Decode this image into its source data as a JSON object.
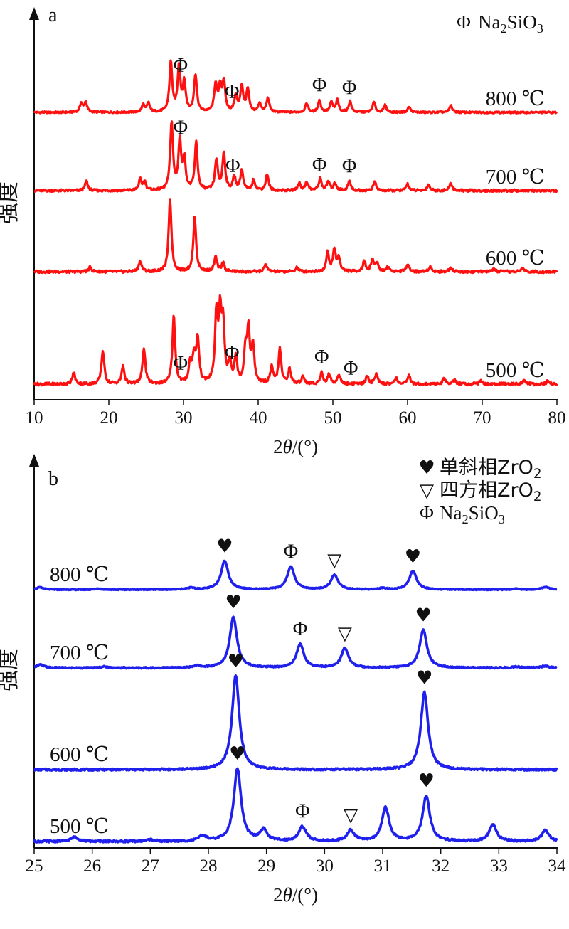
{
  "chart_data": [
    {
      "panel": "a",
      "type": "line",
      "xlabel": "2θ/(°)",
      "ylabel": "强度",
      "xlim": [
        10,
        80
      ],
      "xticks": [
        10,
        20,
        30,
        40,
        50,
        60,
        70,
        80
      ],
      "legend": [
        {
          "symbol": "Φ",
          "label": "Na2SiO3"
        }
      ],
      "series": [
        {
          "name": "800 ℃",
          "color": "#ff1010",
          "baseline": 0,
          "peaks": [
            [
              16.3,
              0.18
            ],
            [
              16.9,
              0.2
            ],
            [
              24.6,
              0.15
            ],
            [
              25.3,
              0.18
            ],
            [
              28.3,
              1.0
            ],
            [
              29.4,
              0.92
            ],
            [
              30.1,
              0.58
            ],
            [
              31.6,
              0.75
            ],
            [
              34.3,
              0.55
            ],
            [
              34.9,
              0.48
            ],
            [
              35.4,
              0.58
            ],
            [
              37.0,
              0.32
            ],
            [
              37.8,
              0.52
            ],
            [
              38.6,
              0.45
            ],
            [
              40.2,
              0.18
            ],
            [
              41.3,
              0.28
            ],
            [
              46.5,
              0.18
            ],
            [
              48.2,
              0.24
            ],
            [
              49.8,
              0.2
            ],
            [
              50.6,
              0.24
            ],
            [
              52.3,
              0.22
            ],
            [
              55.5,
              0.2
            ],
            [
              57.0,
              0.14
            ],
            [
              60.2,
              0.11
            ],
            [
              65.8,
              0.14
            ]
          ],
          "markers": [
            {
              "x": 29.6,
              "symbol": "Φ"
            },
            {
              "x": 36.5,
              "symbol": "Φ"
            },
            {
              "x": 48.2,
              "symbol": "Φ"
            },
            {
              "x": 52.2,
              "symbol": "Φ"
            }
          ]
        },
        {
          "name": "700 ℃",
          "color": "#ff1010",
          "baseline": 1,
          "peaks": [
            [
              17.0,
              0.14
            ],
            [
              24.2,
              0.16
            ],
            [
              24.8,
              0.12
            ],
            [
              28.4,
              1.0
            ],
            [
              29.5,
              0.72
            ],
            [
              30.1,
              0.45
            ],
            [
              31.7,
              0.7
            ],
            [
              34.4,
              0.45
            ],
            [
              35.4,
              0.55
            ],
            [
              36.8,
              0.2
            ],
            [
              37.8,
              0.3
            ],
            [
              39.4,
              0.16
            ],
            [
              41.2,
              0.24
            ],
            [
              45.5,
              0.11
            ],
            [
              46.5,
              0.13
            ],
            [
              48.3,
              0.18
            ],
            [
              49.4,
              0.13
            ],
            [
              50.3,
              0.11
            ],
            [
              52.2,
              0.14
            ],
            [
              55.6,
              0.13
            ],
            [
              60.0,
              0.1
            ],
            [
              62.8,
              0.09
            ],
            [
              65.8,
              0.11
            ]
          ],
          "markers": [
            {
              "x": 29.6,
              "symbol": "Φ"
            },
            {
              "x": 36.6,
              "symbol": "Φ"
            },
            {
              "x": 48.2,
              "symbol": "Φ"
            },
            {
              "x": 52.2,
              "symbol": "Φ"
            }
          ]
        },
        {
          "name": "600 ℃",
          "color": "#ff1010",
          "baseline": 2,
          "peaks": [
            [
              17.5,
              0.06
            ],
            [
              24.2,
              0.15
            ],
            [
              28.2,
              1.0
            ],
            [
              31.5,
              0.75
            ],
            [
              34.3,
              0.2
            ],
            [
              35.3,
              0.12
            ],
            [
              41.0,
              0.1
            ],
            [
              45.2,
              0.06
            ],
            [
              49.3,
              0.26
            ],
            [
              50.2,
              0.3
            ],
            [
              50.8,
              0.18
            ],
            [
              54.2,
              0.14
            ],
            [
              55.3,
              0.16
            ],
            [
              55.9,
              0.12
            ],
            [
              57.4,
              0.07
            ],
            [
              60.0,
              0.11
            ],
            [
              63.0,
              0.07
            ],
            [
              65.8,
              0.06
            ],
            [
              71.5,
              0.04
            ],
            [
              75.4,
              0.05
            ]
          ],
          "markers": []
        },
        {
          "name": "500 ℃",
          "color": "#ff1010",
          "baseline": 3,
          "peaks": [
            [
              15.3,
              0.14
            ],
            [
              19.2,
              0.42
            ],
            [
              21.9,
              0.22
            ],
            [
              24.7,
              0.45
            ],
            [
              28.7,
              0.85
            ],
            [
              30.9,
              0.25
            ],
            [
              31.4,
              0.32
            ],
            [
              31.9,
              0.55
            ],
            [
              34.4,
              0.82
            ],
            [
              34.9,
              0.8
            ],
            [
              35.3,
              0.7
            ],
            [
              36.2,
              0.25
            ],
            [
              37.0,
              0.32
            ],
            [
              38.3,
              0.4
            ],
            [
              38.7,
              0.62
            ],
            [
              39.3,
              0.45
            ],
            [
              41.8,
              0.2
            ],
            [
              42.9,
              0.43
            ],
            [
              44.2,
              0.18
            ],
            [
              46.0,
              0.1
            ],
            [
              48.5,
              0.14
            ],
            [
              49.5,
              0.12
            ],
            [
              50.8,
              0.12
            ],
            [
              54.6,
              0.1
            ],
            [
              55.8,
              0.13
            ],
            [
              58.5,
              0.08
            ],
            [
              60.2,
              0.1
            ],
            [
              64.9,
              0.07
            ],
            [
              66.3,
              0.06
            ],
            [
              69.8,
              0.05
            ],
            [
              75.6,
              0.05
            ],
            [
              78.8,
              0.04
            ]
          ],
          "markers": [
            {
              "x": 29.6,
              "symbol": "Φ"
            },
            {
              "x": 36.5,
              "symbol": "Φ"
            },
            {
              "x": 48.5,
              "symbol": "Φ"
            },
            {
              "x": 52.4,
              "symbol": "Φ"
            }
          ]
        }
      ]
    },
    {
      "panel": "b",
      "type": "line",
      "xlabel": "2θ/(°)",
      "ylabel": "强度",
      "xlim": [
        25,
        34
      ],
      "xticks": [
        25,
        26,
        27,
        28,
        29,
        30,
        31,
        32,
        33,
        34
      ],
      "legend": [
        {
          "symbol": "♥",
          "label": "单斜相ZrO2"
        },
        {
          "symbol": "▽",
          "label": "四方相ZrO2"
        },
        {
          "symbol": "Φ",
          "label": "Na2SiO3"
        }
      ],
      "series": [
        {
          "name": "800 ℃",
          "color": "#2020ee",
          "baseline": 0,
          "peaks": [
            [
              25.1,
              0.05
            ],
            [
              26.1,
              0.02
            ],
            [
              27.7,
              0.04
            ],
            [
              28.28,
              0.65
            ],
            [
              29.42,
              0.52
            ],
            [
              30.17,
              0.33
            ],
            [
              31.0,
              0.03
            ],
            [
              31.52,
              0.42
            ],
            [
              33.3,
              0.02
            ],
            [
              33.8,
              0.06
            ]
          ],
          "markers": [
            {
              "x": 28.28,
              "symbol": "♥"
            },
            {
              "x": 29.42,
              "symbol": "Φ"
            },
            {
              "x": 30.17,
              "symbol": "▽"
            },
            {
              "x": 31.52,
              "symbol": "♥"
            }
          ]
        },
        {
          "name": "700 ℃",
          "color": "#2020ee",
          "baseline": 1,
          "peaks": [
            [
              25.1,
              0.05
            ],
            [
              26.2,
              0.02
            ],
            [
              27.8,
              0.03
            ],
            [
              28.43,
              0.78
            ],
            [
              29.58,
              0.36
            ],
            [
              30.35,
              0.3
            ],
            [
              31.7,
              0.58
            ],
            [
              33.3,
              0.02
            ],
            [
              33.8,
              0.03
            ]
          ],
          "markers": [
            {
              "x": 28.43,
              "symbol": "♥"
            },
            {
              "x": 29.58,
              "symbol": "Φ"
            },
            {
              "x": 30.35,
              "symbol": "▽"
            },
            {
              "x": 31.7,
              "symbol": "♥"
            }
          ]
        },
        {
          "name": "600 ℃",
          "color": "#2020ee",
          "baseline": 2,
          "peaks": [
            [
              28.47,
              1.0
            ],
            [
              31.72,
              0.82
            ]
          ],
          "markers": [
            {
              "x": 28.47,
              "symbol": "♥"
            },
            {
              "x": 31.72,
              "symbol": "♥"
            }
          ]
        },
        {
          "name": "500 ℃",
          "color": "#2020ee",
          "baseline": 3,
          "peaks": [
            [
              25.7,
              0.05
            ],
            [
              27.0,
              0.02
            ],
            [
              27.9,
              0.06
            ],
            [
              28.5,
              0.8
            ],
            [
              28.95,
              0.12
            ],
            [
              29.62,
              0.16
            ],
            [
              30.45,
              0.12
            ],
            [
              31.05,
              0.37
            ],
            [
              31.75,
              0.5
            ],
            [
              32.9,
              0.18
            ],
            [
              33.8,
              0.12
            ]
          ],
          "markers": [
            {
              "x": 28.5,
              "symbol": "♥"
            },
            {
              "x": 29.62,
              "symbol": "Φ"
            },
            {
              "x": 30.45,
              "symbol": "▽"
            },
            {
              "x": 31.75,
              "symbol": "♥"
            }
          ]
        }
      ]
    }
  ]
}
